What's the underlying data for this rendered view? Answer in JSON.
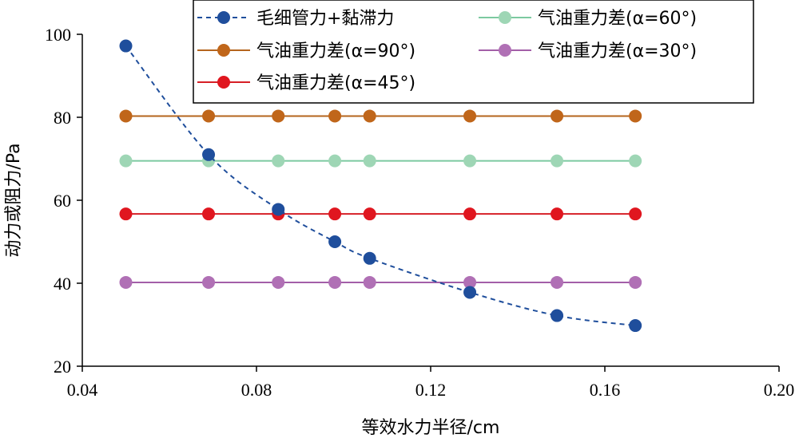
{
  "chart_data": {
    "type": "line",
    "title": "",
    "xlabel": "等效水力半径/cm",
    "ylabel": "动力或阻力/Pa",
    "xlim": [
      0.04,
      0.2
    ],
    "ylim": [
      20,
      100
    ],
    "xticks": [
      "0.04",
      "0.08",
      "0.12",
      "0.16",
      "0.20"
    ],
    "yticks": [
      "20",
      "40",
      "60",
      "80",
      "100"
    ],
    "grid": false,
    "legend_position": "top-right",
    "x": [
      0.05,
      0.069,
      0.085,
      0.098,
      0.106,
      0.129,
      0.149,
      0.167
    ],
    "series": [
      {
        "name": "毛细管力+黏滞力",
        "style": "dashed-smooth",
        "color": "#1f4e9c",
        "marker_color": "#1f4e9c",
        "values": [
          97.2,
          71.0,
          57.8,
          50.0,
          46.0,
          37.8,
          32.2,
          29.8
        ]
      },
      {
        "name": "气油重力差(α=90°)",
        "style": "solid",
        "color": "#b5651d",
        "marker_color": "#c0661a",
        "values": [
          80.3,
          80.3,
          80.3,
          80.3,
          80.3,
          80.3,
          80.3,
          80.3
        ]
      },
      {
        "name": "气油重力差(α=45°)",
        "style": "solid",
        "color": "#d61f26",
        "marker_color": "#e0161f",
        "values": [
          56.7,
          56.7,
          56.7,
          56.7,
          56.7,
          56.7,
          56.7,
          56.7
        ]
      },
      {
        "name": "气油重力差(α=60°)",
        "style": "solid",
        "color": "#7cc9a0",
        "marker_color": "#9ed6b5",
        "values": [
          69.5,
          69.5,
          69.5,
          69.5,
          69.5,
          69.5,
          69.5,
          69.5
        ]
      },
      {
        "name": "气油重力差(α=30°)",
        "style": "solid",
        "color": "#a35fa8",
        "marker_color": "#b070b5",
        "values": [
          40.2,
          40.2,
          40.2,
          40.2,
          40.2,
          40.2,
          40.2,
          40.2
        ]
      }
    ]
  }
}
